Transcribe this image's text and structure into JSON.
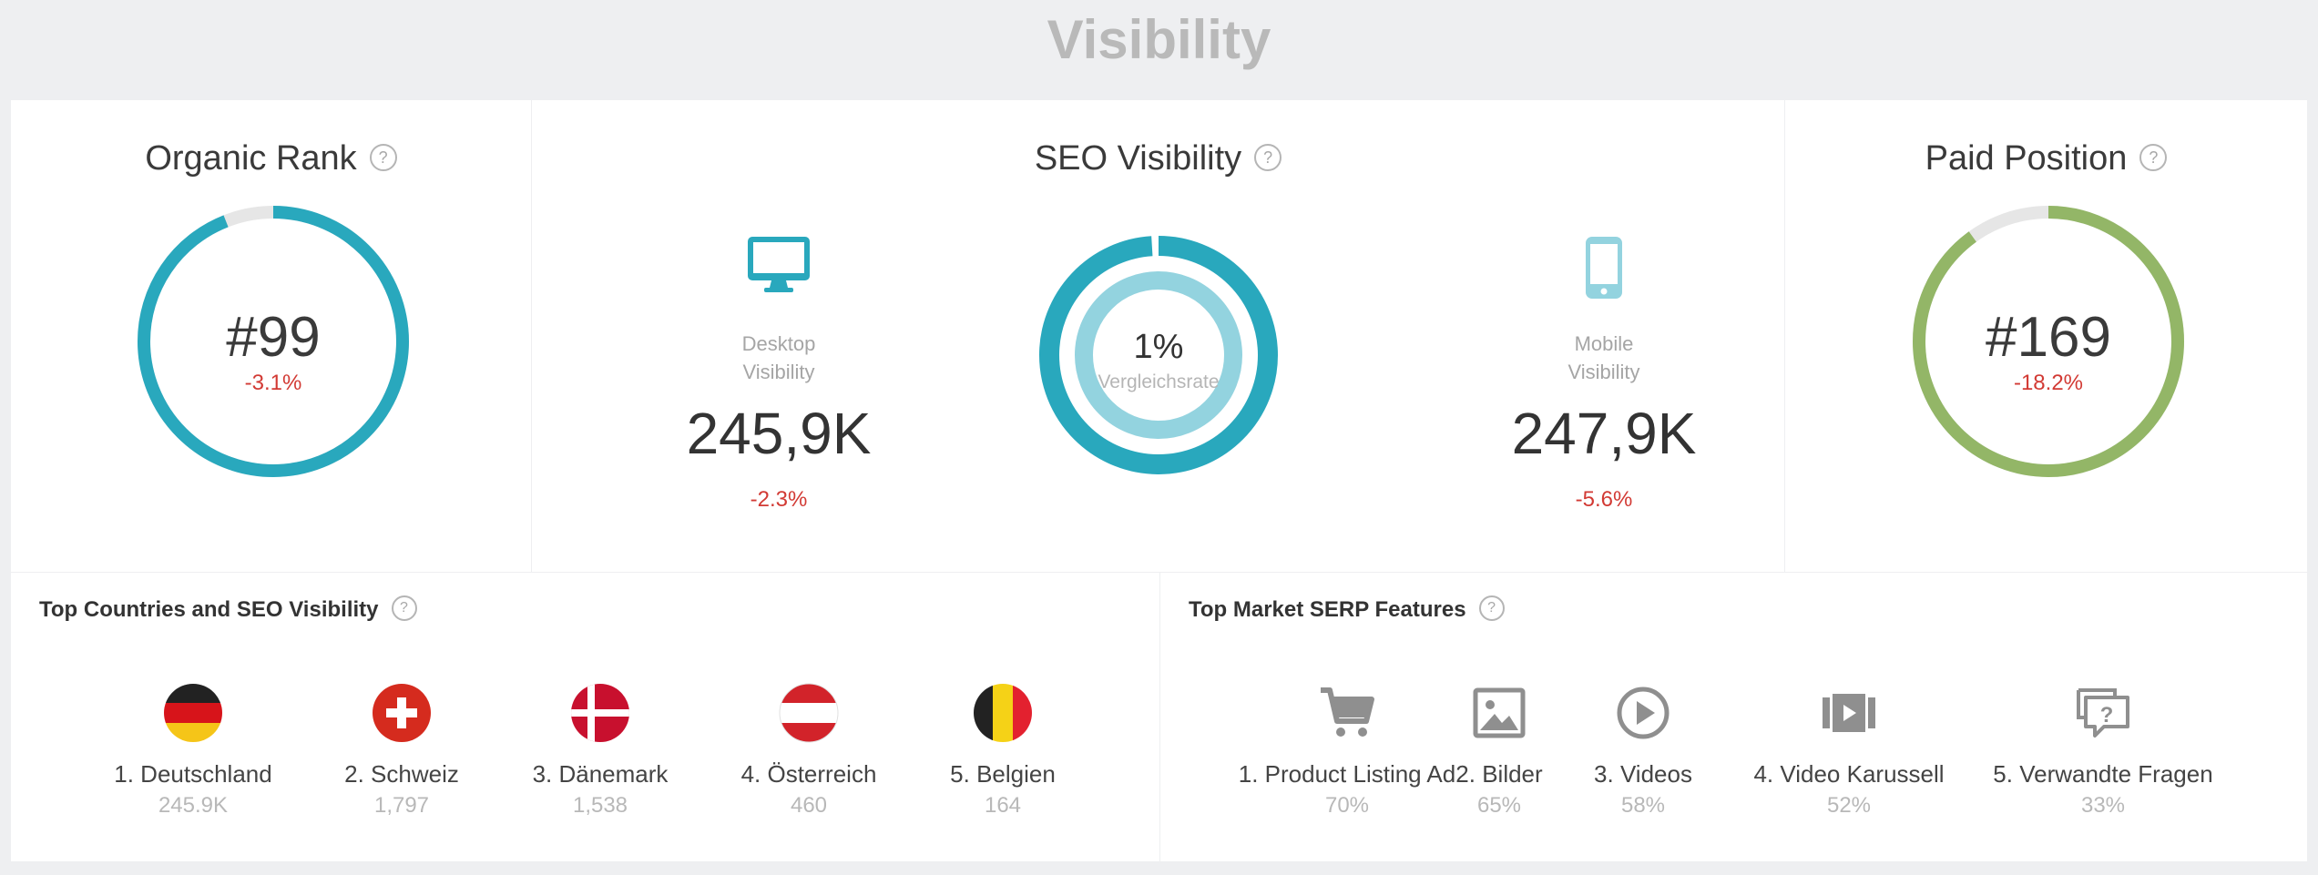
{
  "page": {
    "title": "Visibility"
  },
  "colors": {
    "teal": "#29a8bd",
    "light_teal": "#93d3df",
    "green": "#93b667",
    "ring_bg": "#e6e6e6",
    "negative": "#d23a34"
  },
  "organic_rank": {
    "title": "Organic Rank",
    "help": "?",
    "value": "#99",
    "change": "-3.1%",
    "ring_fill_fraction": 0.94
  },
  "seo_visibility": {
    "title": "SEO Visibility",
    "help": "?",
    "desktop": {
      "icon": "desktop-icon",
      "label_line1": "Desktop",
      "label_line2": "Visibility",
      "value": "245,9K",
      "change": "-2.3%"
    },
    "mobile": {
      "icon": "mobile-icon",
      "label_line1": "Mobile",
      "label_line2": "Visibility",
      "value": "247,9K",
      "change": "-5.6%"
    },
    "comparison": {
      "value": "1%",
      "label": "Vergleichsrate",
      "fill_fraction": 0.99
    }
  },
  "paid_position": {
    "title": "Paid Position",
    "help": "?",
    "value": "#169",
    "change": "-18.2%",
    "ring_fill_fraction": 0.9
  },
  "top_countries": {
    "title": "Top Countries and SEO Visibility",
    "help": "?",
    "items": [
      {
        "flag": "germany-flag",
        "label": "1. Deutschland",
        "value": "245.9K"
      },
      {
        "flag": "switzerland-flag",
        "label": "2. Schweiz",
        "value": "1,797"
      },
      {
        "flag": "denmark-flag",
        "label": "3. Dänemark",
        "value": "1,538"
      },
      {
        "flag": "austria-flag",
        "label": "4. Österreich",
        "value": "460"
      },
      {
        "flag": "belgium-flag",
        "label": "5. Belgien",
        "value": "164"
      }
    ]
  },
  "serp_features": {
    "title": "Top Market SERP Features",
    "help": "?",
    "items": [
      {
        "icon": "shopping-cart-icon",
        "label": "1. Product Listing Ad",
        "value": "70%"
      },
      {
        "icon": "image-icon",
        "label": "2. Bilder",
        "value": "65%"
      },
      {
        "icon": "play-icon",
        "label": "3. Videos",
        "value": "58%"
      },
      {
        "icon": "video-carousel-icon",
        "label": "4. Video Karussell",
        "value": "52%"
      },
      {
        "icon": "question-bubble-icon",
        "label": "5. Verwandte Fragen",
        "value": "33%"
      }
    ]
  }
}
